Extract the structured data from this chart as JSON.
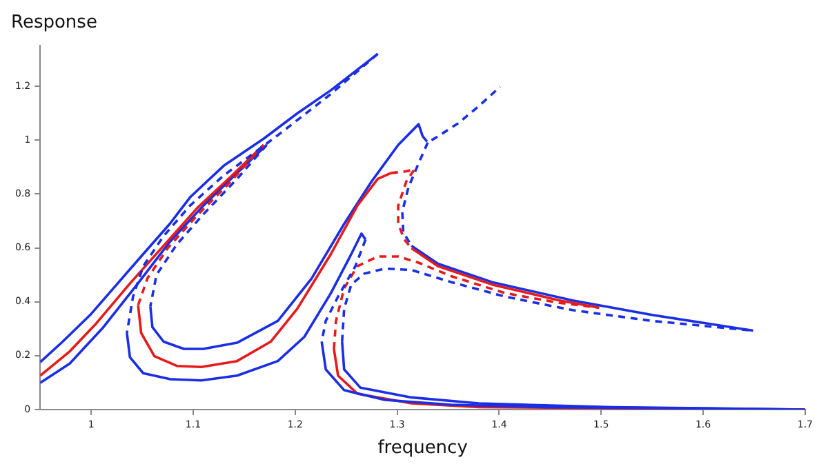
{
  "chart_data": {
    "type": "line",
    "xlabel": "frequency",
    "ylabel": "Response",
    "xlim": [
      0.95,
      1.7
    ],
    "ylim": [
      0,
      1.35
    ],
    "xticks": [
      1,
      1.1,
      1.2,
      1.3,
      1.4,
      1.5,
      1.6,
      1.7
    ],
    "yticks": [
      0,
      0.2,
      0.4,
      0.6,
      0.8,
      1,
      1.2
    ],
    "grid": false,
    "legend": false,
    "series": [
      {
        "color": "#1a2ee6",
        "line_style": "solid",
        "x": [
          0.95,
          0.972,
          0.999,
          1.025,
          1.051,
          1.077,
          1.097,
          1.13,
          1.169,
          1.202,
          1.235,
          1.281
        ],
        "values": [
          0.176,
          0.252,
          0.351,
          0.464,
          0.577,
          0.689,
          0.788,
          0.905,
          1.005,
          1.099,
          1.185,
          1.32
        ]
      },
      {
        "color": "#1a2ee6",
        "line_style": "dashed",
        "x": [
          1.281,
          1.235,
          1.183,
          1.13,
          1.097,
          1.071,
          1.051,
          1.041,
          1.035
        ],
        "values": [
          1.32,
          1.171,
          1.018,
          0.869,
          0.757,
          0.644,
          0.532,
          0.419,
          0.284
        ]
      },
      {
        "color": "#1a2ee6",
        "line_style": "solid",
        "x": [
          1.035,
          1.038,
          1.051,
          1.077,
          1.108,
          1.143,
          1.183,
          1.209,
          1.235,
          1.255,
          1.265,
          1.269
        ],
        "values": [
          0.284,
          0.194,
          0.135,
          0.113,
          0.108,
          0.126,
          0.18,
          0.27,
          0.432,
          0.577,
          0.653,
          0.631
        ]
      },
      {
        "color": "#1a2ee6",
        "line_style": "dashed",
        "x": [
          1.269,
          1.259,
          1.242,
          1.23,
          1.226
        ],
        "values": [
          0.631,
          0.532,
          0.419,
          0.329,
          0.252
        ]
      },
      {
        "color": "#1a2ee6",
        "line_style": "solid",
        "x": [
          1.226,
          1.23,
          1.248,
          1.288,
          1.353,
          1.445,
          1.577,
          1.7
        ],
        "values": [
          0.252,
          0.149,
          0.072,
          0.036,
          0.018,
          0.009,
          0.005,
          0
        ]
      },
      {
        "color": "#e61a1a",
        "line_style": "solid",
        "x": [
          0.95,
          0.979,
          1.005,
          1.038,
          1.071,
          1.104,
          1.137,
          1.169
        ],
        "values": [
          0.126,
          0.216,
          0.32,
          0.468,
          0.608,
          0.748,
          0.865,
          0.982
        ]
      },
      {
        "color": "#e61a1a",
        "line_style": "dashed",
        "x": [
          1.169,
          1.137,
          1.104,
          1.075,
          1.055,
          1.046
        ],
        "values": [
          0.982,
          0.847,
          0.721,
          0.599,
          0.486,
          0.387
        ]
      },
      {
        "color": "#e61a1a",
        "line_style": "solid",
        "x": [
          1.046,
          1.049,
          1.062,
          1.084,
          1.108,
          1.143,
          1.176,
          1.202,
          1.235,
          1.261,
          1.281,
          1.294
        ],
        "values": [
          0.387,
          0.284,
          0.198,
          0.162,
          0.158,
          0.18,
          0.252,
          0.374,
          0.577,
          0.757,
          0.856,
          0.878
        ]
      },
      {
        "color": "#e61a1a",
        "line_style": "dashed",
        "x": [
          1.294,
          1.307,
          1.317,
          1.309,
          1.301,
          1.301,
          1.307,
          1.314
        ],
        "values": [
          0.878,
          0.883,
          0.892,
          0.847,
          0.757,
          0.689,
          0.631,
          0.599
        ]
      },
      {
        "color": "#e61a1a",
        "line_style": "solid",
        "x": [
          1.314,
          1.34,
          1.393,
          1.459,
          1.498
        ],
        "values": [
          0.599,
          0.532,
          0.464,
          0.405,
          0.378
        ]
      },
      {
        "color": "#e61a1a",
        "line_style": "dashed",
        "x": [
          1.238,
          1.24,
          1.248,
          1.261,
          1.281,
          1.301,
          1.321,
          1.353,
          1.406,
          1.459,
          1.498
        ],
        "values": [
          0.225,
          0.329,
          0.45,
          0.532,
          0.568,
          0.568,
          0.545,
          0.495,
          0.432,
          0.396,
          0.378
        ]
      },
      {
        "color": "#e61a1a",
        "line_style": "solid",
        "x": [
          1.238,
          1.242,
          1.261,
          1.314,
          1.38,
          1.511,
          1.7
        ],
        "values": [
          0.225,
          0.126,
          0.059,
          0.023,
          0.009,
          0.005,
          0
        ]
      },
      {
        "color": "#1a2ee6",
        "line_style": "solid",
        "x": [
          0.95,
          0.979,
          1.012,
          1.045,
          1.077,
          1.11,
          1.143,
          1.172
        ],
        "values": [
          0.099,
          0.171,
          0.306,
          0.464,
          0.622,
          0.757,
          0.878,
          0.982
        ]
      },
      {
        "color": "#1a2ee6",
        "line_style": "dashed",
        "x": [
          1.172,
          1.143,
          1.11,
          1.084,
          1.064,
          1.058
        ],
        "values": [
          0.982,
          0.856,
          0.725,
          0.613,
          0.5,
          0.383
        ]
      },
      {
        "color": "#1a2ee6",
        "line_style": "solid",
        "x": [
          1.058,
          1.06,
          1.071,
          1.091,
          1.11,
          1.143,
          1.183,
          1.216,
          1.248,
          1.275,
          1.301,
          1.321,
          1.325
        ],
        "values": [
          0.383,
          0.306,
          0.252,
          0.225,
          0.225,
          0.248,
          0.329,
          0.486,
          0.689,
          0.847,
          0.982,
          1.059,
          1.014
        ]
      },
      {
        "color": "#1a2ee6",
        "line_style": "dashed",
        "x": [
          1.325,
          1.33,
          1.34,
          1.36,
          1.38,
          1.401
        ],
        "values": [
          1.014,
          0.991,
          1.014,
          1.063,
          1.126,
          1.198
        ]
      },
      {
        "color": "#1a2ee6",
        "line_style": "dashed",
        "x": [
          1.33,
          1.321,
          1.311,
          1.305,
          1.306,
          1.314
        ],
        "values": [
          0.991,
          0.914,
          0.824,
          0.734,
          0.658,
          0.608
        ]
      },
      {
        "color": "#1a2ee6",
        "line_style": "solid",
        "x": [
          1.314,
          1.34,
          1.393,
          1.472,
          1.55,
          1.649
        ],
        "values": [
          0.608,
          0.541,
          0.473,
          0.405,
          0.351,
          0.293
        ]
      },
      {
        "color": "#1a2ee6",
        "line_style": "dashed",
        "x": [
          1.246,
          1.248,
          1.255,
          1.268,
          1.288,
          1.314,
          1.353,
          1.406,
          1.472,
          1.55,
          1.649
        ],
        "values": [
          0.252,
          0.374,
          0.464,
          0.505,
          0.523,
          0.518,
          0.473,
          0.419,
          0.369,
          0.329,
          0.293
        ]
      },
      {
        "color": "#1a2ee6",
        "line_style": "solid",
        "x": [
          1.246,
          1.248,
          1.264,
          1.314,
          1.38,
          1.511,
          1.7
        ],
        "values": [
          0.252,
          0.149,
          0.081,
          0.045,
          0.023,
          0.009,
          0
        ]
      }
    ]
  }
}
